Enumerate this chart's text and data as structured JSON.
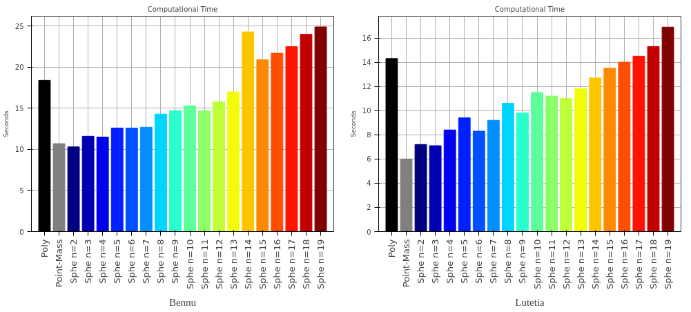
{
  "chart_data": [
    {
      "type": "bar",
      "title": "Computational Time",
      "ylabel": "Seconds",
      "annotations": [
        "Bennu"
      ],
      "categories": [
        "Poly",
        "Point-Mass",
        "Sphe n=2",
        "Sphe n=3",
        "Sphe n=4",
        "Sphe n=5",
        "Sphe n=6",
        "Sphe n=7",
        "Sphe n=8",
        "Sphe n=9",
        "Sphe n=10",
        "Sphe n=11",
        "Sphe n=12",
        "Sphe n=13",
        "Sphe n=14",
        "Sphe n=15",
        "Sphe n=16",
        "Sphe n=17",
        "Sphe n=18",
        "Sphe n=19"
      ],
      "values": [
        18.4,
        10.7,
        10.3,
        11.6,
        11.5,
        12.6,
        12.6,
        12.7,
        14.3,
        14.7,
        15.3,
        14.7,
        15.8,
        17.0,
        24.3,
        20.9,
        21.7,
        22.5,
        24.0,
        24.9
      ],
      "colors": [
        "#000000",
        "#808080",
        "#000080",
        "#0000b2",
        "#0000f1",
        "#0020ff",
        "#0050ff",
        "#0090ff",
        "#00d4ff",
        "#29ffce",
        "#5cff9a",
        "#8cff6a",
        "#bfff37",
        "#f1fc06",
        "#ffc400",
        "#ff8900",
        "#ff4e00",
        "#ff1300",
        "#c30000",
        "#800000"
      ],
      "ylim": [
        0,
        26.2
      ],
      "yticks": [
        0,
        5,
        10,
        15,
        20,
        25
      ],
      "grid": true
    },
    {
      "type": "bar",
      "title": "Computational Time",
      "ylabel": "Seconds",
      "annotations": [
        "Lutetia"
      ],
      "categories": [
        "Poly",
        "Point-Mass",
        "Sphe n=2",
        "Sphe n=3",
        "Sphe n=4",
        "Sphe n=5",
        "Sphe n=6",
        "Sphe n=7",
        "Sphe n=8",
        "Sphe n=9",
        "Sphe n=10",
        "Sphe n=11",
        "Sphe n=12",
        "Sphe n=13",
        "Sphe n=14",
        "Sphe n=15",
        "Sphe n=16",
        "Sphe n=17",
        "Sphe n=18",
        "Sphe n=19"
      ],
      "values": [
        14.3,
        6.0,
        7.2,
        7.1,
        8.4,
        9.4,
        8.3,
        9.2,
        10.6,
        9.8,
        11.5,
        11.2,
        11.0,
        11.8,
        12.7,
        13.5,
        14.0,
        14.5,
        15.3,
        16.9
      ],
      "colors": [
        "#000000",
        "#808080",
        "#000080",
        "#0000b2",
        "#0000f1",
        "#0020ff",
        "#0050ff",
        "#0090ff",
        "#00d4ff",
        "#29ffce",
        "#5cff9a",
        "#8cff6a",
        "#bfff37",
        "#f1fc06",
        "#ffc400",
        "#ff8900",
        "#ff4e00",
        "#ff1300",
        "#c30000",
        "#800000"
      ],
      "ylim": [
        0,
        17.8
      ],
      "yticks": [
        0,
        2,
        4,
        6,
        8,
        10,
        12,
        14,
        16
      ],
      "grid": true
    }
  ]
}
